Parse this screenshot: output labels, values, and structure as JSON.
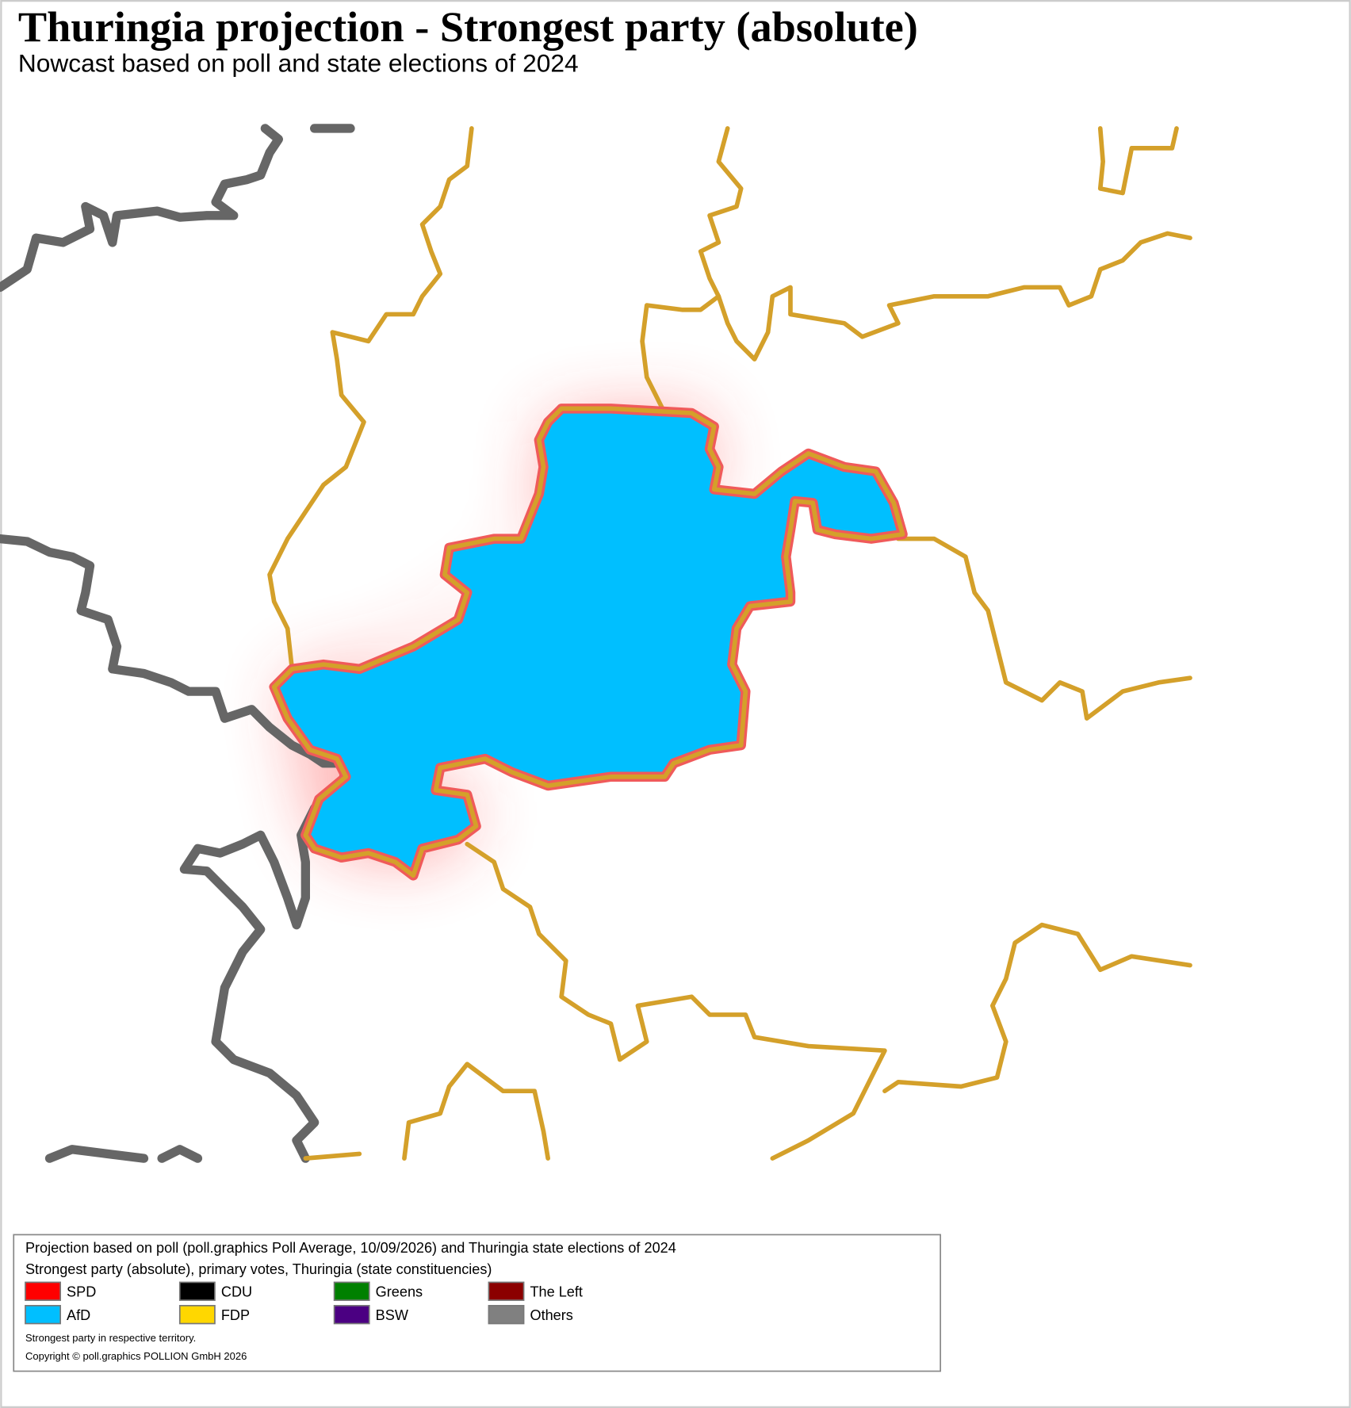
{
  "header": {
    "title": "Thuringia projection - Strongest party (absolute)",
    "subtitle": "Nowcast based on poll and state elections of 2024"
  },
  "legend": {
    "lines": [
      "Projection based on poll (poll.graphics Poll Average, 10/09/2026) and Thuringia state elections of 2024",
      "Strongest party (absolute), primary votes, Thuringia (state constituencies)"
    ],
    "entries": [
      {
        "name": "SPD",
        "color": "#ff0000"
      },
      {
        "name": "AfD",
        "color": "#00bfff"
      },
      {
        "name": "CDU",
        "color": "#000000"
      },
      {
        "name": "FDP",
        "color": "#ffd700"
      },
      {
        "name": "Greens",
        "color": "#008000"
      },
      {
        "name": "BSW",
        "color": "#4b0082"
      },
      {
        "name": "The Left",
        "color": "#8b0000"
      },
      {
        "name": "Others",
        "color": "#808080"
      }
    ],
    "notes": [
      "Strongest party in respective territory.",
      "Copyright © poll.graphics POLLION GmbH 2026"
    ]
  }
}
